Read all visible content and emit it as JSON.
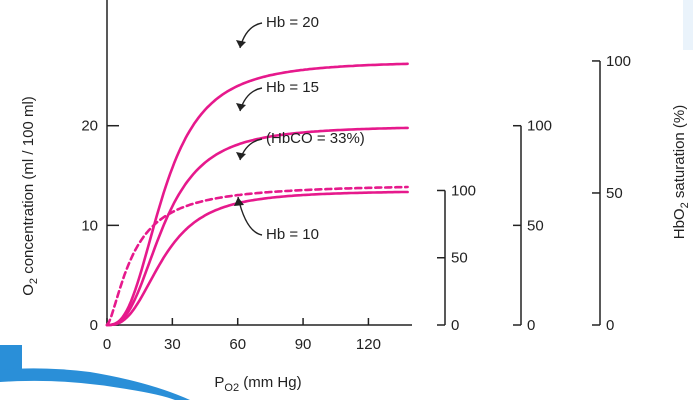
{
  "chart_data": {
    "type": "line",
    "xlabel": {
      "main": "P",
      "sub": "O2",
      "unit": " (mm Hg)"
    },
    "ylabel": {
      "pre": "O",
      "sub": "2",
      "post": " concentration (ml / 100 ml)"
    },
    "y2label": {
      "pre": "HbO",
      "sub": "2",
      "post": " saturation (%)"
    },
    "xlim": [
      0,
      140
    ],
    "ylim": [
      0,
      28
    ],
    "xticks": [
      "0",
      "30",
      "60",
      "90",
      "120"
    ],
    "xtick_values": [
      0,
      30,
      60,
      90,
      120
    ],
    "yticks": [
      "0",
      "10",
      "20"
    ],
    "ytick_values": [
      0,
      10,
      20
    ],
    "grid": false,
    "colors": {
      "series": "#e6198c",
      "axis": "#222222",
      "deco_blue": "#2a8fd8"
    },
    "series": [
      {
        "name": "Hb = 20",
        "style": "solid",
        "p50": 26,
        "hill_n": 2.7,
        "ymax": 26.5,
        "x": [
          0,
          10,
          20,
          30,
          40,
          50,
          60,
          70,
          80,
          90,
          100,
          110,
          120,
          130,
          138
        ],
        "y": [
          0,
          0.8,
          6.1,
          12.6,
          17.6,
          20.8,
          22.7,
          23.9,
          24.6,
          25.1,
          25.4,
          25.7,
          25.8,
          26.0,
          26.0
        ]
      },
      {
        "name": "Hb = 15",
        "style": "solid",
        "p50": 26,
        "hill_n": 2.7,
        "ymax": 20,
        "x": [
          0,
          10,
          20,
          30,
          40,
          50,
          60,
          70,
          80,
          90,
          100,
          110,
          120,
          130,
          138
        ],
        "y": [
          0,
          0.6,
          4.6,
          9.5,
          13.3,
          15.7,
          17.2,
          18.0,
          18.6,
          19.0,
          19.2,
          19.4,
          19.5,
          19.6,
          19.6
        ]
      },
      {
        "name": "(HbCO = 33%)",
        "style": "dashed",
        "p50": 12,
        "hill_n": 1.5,
        "ymax": 14.2,
        "x": [
          0,
          10,
          20,
          30,
          40,
          50,
          60,
          70,
          80,
          90,
          100,
          110,
          120,
          130,
          138
        ],
        "y": [
          0,
          5.8,
          9.4,
          11.1,
          12.0,
          12.5,
          12.9,
          13.1,
          13.3,
          13.4,
          13.5,
          13.6,
          13.6,
          13.7,
          13.7
        ]
      },
      {
        "name": "Hb = 10",
        "style": "solid",
        "p50": 26,
        "hill_n": 2.7,
        "ymax": 13.5,
        "x": [
          0,
          10,
          20,
          30,
          40,
          50,
          60,
          70,
          80,
          90,
          100,
          110,
          120,
          130,
          138
        ],
        "y": [
          0,
          0.4,
          3.1,
          6.4,
          9.0,
          10.6,
          11.6,
          12.2,
          12.6,
          12.8,
          13.0,
          13.1,
          13.2,
          13.2,
          13.2
        ]
      }
    ],
    "saturation_axes": [
      {
        "scale_max_conc": 13.5,
        "ticks": [
          "100",
          "50",
          "0"
        ]
      },
      {
        "scale_max_conc": 20,
        "ticks": [
          "100",
          "50",
          "0"
        ]
      },
      {
        "scale_max_conc": 26.5,
        "ticks": [
          "100",
          "50",
          "0"
        ]
      }
    ]
  }
}
